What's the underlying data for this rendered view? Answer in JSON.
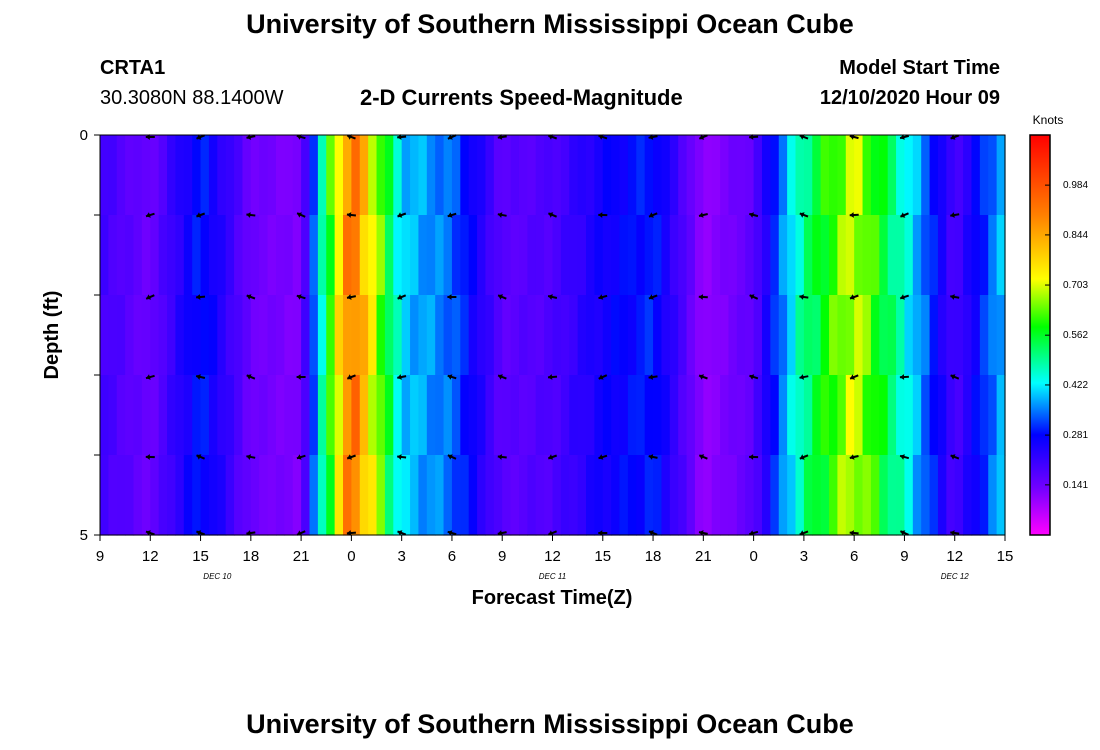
{
  "header": {
    "title": "University of Southern Mississippi Ocean Cube",
    "station_id": "CRTA1",
    "station_coords": "30.3080N 88.1400W",
    "chart_title": "2-D Currents Speed-Magnitude",
    "model_label": "Model Start Time",
    "model_time": "12/10/2020 Hour 09"
  },
  "footer": {
    "title": "University of Southern Mississippi Ocean Cube"
  },
  "colors": {
    "background": "#ffffff",
    "text": "#000000",
    "colormap": [
      "#ff00ff",
      "#7000ff",
      "#0000ff",
      "#00ffff",
      "#00ff00",
      "#ffff00",
      "#ff8000",
      "#ff0000"
    ]
  },
  "chart_data": {
    "type": "heatmap",
    "title": "2-D Currents Speed-Magnitude",
    "xlabel": "Forecast Time(Z)",
    "ylabel": "Depth (ft)",
    "x_ticks": [
      "9",
      "12",
      "15",
      "18",
      "21",
      "0",
      "3",
      "6",
      "9",
      "12",
      "15",
      "18",
      "21",
      "0",
      "3",
      "6",
      "9",
      "12",
      "15"
    ],
    "day_labels": [
      {
        "label": "DEC 10",
        "at_hour": 16
      },
      {
        "label": "DEC 11",
        "at_hour": 36
      },
      {
        "label": "DEC 12",
        "at_hour": 60
      }
    ],
    "x_range_hours": [
      0,
      54
    ],
    "y_ticks": [
      "0",
      "5"
    ],
    "ylim": [
      0,
      5
    ],
    "depth_rows": 5,
    "colorbar": {
      "unit": "Knots",
      "min": 0.0,
      "max": 1.125,
      "ticks": [
        "0.984",
        "0.844",
        "0.703",
        "0.562",
        "0.422",
        "0.281",
        "0.141"
      ],
      "tick_values": [
        0.984,
        0.844,
        0.703,
        0.562,
        0.422,
        0.281,
        0.141
      ]
    },
    "speed_profile_by_hour": [
      {
        "hour": 0,
        "speed": 0.2
      },
      {
        "hour": 3,
        "speed": 0.14
      },
      {
        "hour": 6,
        "speed": 0.3
      },
      {
        "hour": 9,
        "speed": 0.14
      },
      {
        "hour": 12,
        "speed": 0.12
      },
      {
        "hour": 15,
        "speed": 0.95
      },
      {
        "hour": 18,
        "speed": 0.4
      },
      {
        "hour": 21,
        "speed": 0.34
      },
      {
        "hour": 24,
        "speed": 0.16
      },
      {
        "hour": 27,
        "speed": 0.18
      },
      {
        "hour": 30,
        "speed": 0.26
      },
      {
        "hour": 33,
        "speed": 0.3
      },
      {
        "hour": 36,
        "speed": 0.1
      },
      {
        "hour": 39,
        "speed": 0.16
      },
      {
        "hour": 42,
        "speed": 0.5
      },
      {
        "hour": 45,
        "speed": 0.7
      },
      {
        "hour": 48,
        "speed": 0.45
      },
      {
        "hour": 51,
        "speed": 0.18
      },
      {
        "hour": 54,
        "speed": 0.4
      }
    ],
    "vector_columns_hours": [
      3,
      6,
      9,
      12,
      15,
      18,
      21,
      24,
      27,
      30,
      33,
      36,
      39,
      42,
      45,
      48,
      51
    ]
  }
}
